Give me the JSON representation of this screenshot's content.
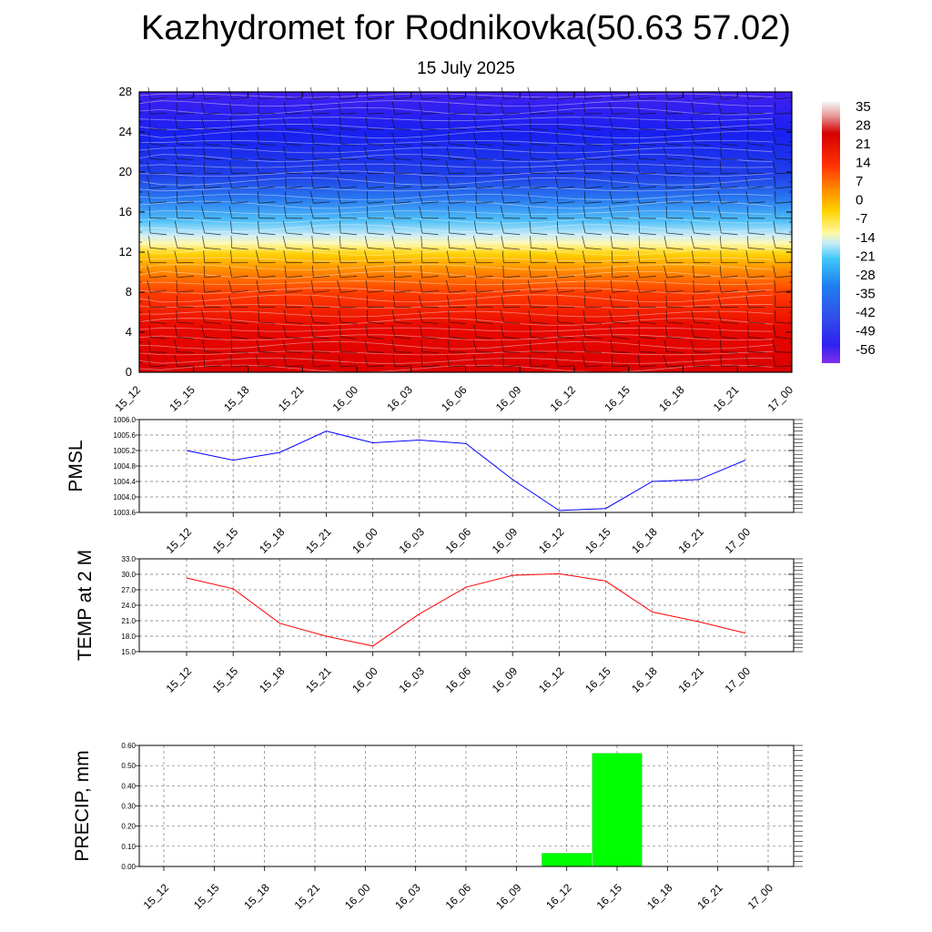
{
  "header": {
    "title": "Kazhydromet for Rodnikovka(50.63 57.02)",
    "subtitle": "15 July 2025"
  },
  "chart_data": [
    {
      "type": "heatmap",
      "title": "",
      "y_ticks": [
        "0",
        "4",
        "8",
        "12",
        "16",
        "20",
        "24",
        "28"
      ],
      "ylim": [
        0,
        28
      ],
      "x_ticks": [
        "15_12",
        "15_15",
        "15_18",
        "15_21",
        "16_00",
        "16_03",
        "16_06",
        "16_09",
        "16_12",
        "16_15",
        "16_18",
        "16_21",
        "17_00"
      ],
      "colorbar_labels": [
        "35",
        "28",
        "21",
        "14",
        "7",
        "0",
        "-7",
        "-14",
        "-21",
        "-28",
        "-35",
        "-42",
        "-49",
        "-56"
      ],
      "bands": [
        {
          "y_from": 0,
          "y_to": 4,
          "value": 30
        },
        {
          "y_from": 4,
          "y_to": 8,
          "value": 21
        },
        {
          "y_from": 8,
          "y_to": 11,
          "value": 10
        },
        {
          "y_from": 11,
          "y_to": 13,
          "value": 0
        },
        {
          "y_from": 13,
          "y_to": 15.5,
          "value": -20
        },
        {
          "y_from": 15.5,
          "y_to": 18,
          "value": -40
        },
        {
          "y_from": 18,
          "y_to": 26,
          "value": -52
        },
        {
          "y_from": 26,
          "y_to": 28,
          "value": -58
        }
      ],
      "wind_barbs": true
    },
    {
      "type": "line",
      "ylabel": "PMSL",
      "ylim": [
        1003.6,
        1006.0
      ],
      "y_ticks": [
        "1006.0",
        "1005.6",
        "1005.2",
        "1004.8",
        "1004.4",
        "1004.0",
        "1003.6"
      ],
      "x": [
        "15_12",
        "15_15",
        "15_18",
        "15_21",
        "16_00",
        "16_03",
        "16_06",
        "16_09",
        "16_12",
        "16_15",
        "16_18",
        "16_21",
        "17_00"
      ],
      "series": [
        {
          "values": [
            1005.2,
            1004.95,
            1005.15,
            1005.7,
            1005.4,
            1005.47,
            1005.38,
            1004.45,
            1003.65,
            1003.7,
            1004.4,
            1004.45,
            1004.95
          ],
          "color": "#0000ff"
        }
      ],
      "grid": true
    },
    {
      "type": "line",
      "ylabel": "TEMP at 2 M",
      "ylim": [
        15.0,
        33.0
      ],
      "y_ticks": [
        "33.0",
        "30.0",
        "27.0",
        "24.0",
        "21.0",
        "18.0",
        "15.0"
      ],
      "x": [
        "15_12",
        "15_15",
        "15_18",
        "15_21",
        "16_00",
        "16_03",
        "16_06",
        "16_09",
        "16_12",
        "16_15",
        "16_18",
        "16_21",
        "17_00"
      ],
      "series": [
        {
          "values": [
            29.3,
            27.2,
            20.5,
            18.0,
            16.1,
            22.3,
            27.5,
            29.8,
            30.1,
            28.7,
            22.7,
            20.8,
            18.6
          ],
          "color": "#ff0000"
        }
      ],
      "grid": true
    },
    {
      "type": "bar",
      "ylabel": "PRECIP, mm",
      "ylim": [
        0,
        0.6
      ],
      "y_ticks": [
        "0.60",
        "0.50",
        "0.40",
        "0.30",
        "0.20",
        "0.10",
        "0.00"
      ],
      "categories": [
        "15_12",
        "15_15",
        "15_18",
        "15_21",
        "16_00",
        "16_03",
        "16_06",
        "16_09",
        "16_12",
        "16_15",
        "16_18",
        "16_21",
        "17_00"
      ],
      "values": [
        0,
        0,
        0,
        0,
        0,
        0,
        0,
        0,
        0.065,
        0.56,
        0,
        0,
        0
      ],
      "color": "#00ff00",
      "grid": true
    }
  ]
}
